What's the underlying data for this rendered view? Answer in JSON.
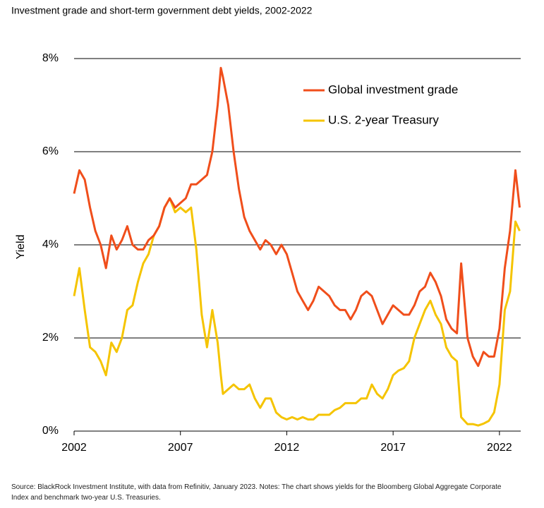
{
  "chart_data": {
    "type": "line",
    "title": "Investment grade and short-term government debt yields, 2002-2022",
    "y_label": "Yield",
    "note": "Source: BlackRock Investment Institute, with data from Refinitiv, January 2023. Notes: The chart shows yields for the Bloomberg Global Aggregate Corporate Index and benchmark two-year U.S. Treasuries.",
    "x": [
      2002.0,
      2002.25,
      2002.5,
      2002.75,
      2003.0,
      2003.25,
      2003.5,
      2003.75,
      2004.0,
      2004.25,
      2004.5,
      2004.75,
      2005.0,
      2005.25,
      2005.5,
      2005.75,
      2006.0,
      2006.25,
      2006.5,
      2006.75,
      2007.0,
      2007.25,
      2007.5,
      2007.75,
      2008.0,
      2008.25,
      2008.5,
      2008.75,
      2008.9,
      2009.0,
      2009.25,
      2009.5,
      2009.75,
      2010.0,
      2010.25,
      2010.5,
      2010.75,
      2011.0,
      2011.25,
      2011.5,
      2011.75,
      2012.0,
      2012.25,
      2012.5,
      2012.75,
      2013.0,
      2013.25,
      2013.5,
      2013.75,
      2014.0,
      2014.25,
      2014.5,
      2014.75,
      2015.0,
      2015.25,
      2015.5,
      2015.75,
      2016.0,
      2016.25,
      2016.5,
      2016.75,
      2017.0,
      2017.25,
      2017.5,
      2017.75,
      2018.0,
      2018.25,
      2018.5,
      2018.75,
      2019.0,
      2019.25,
      2019.5,
      2019.75,
      2020.0,
      2020.2,
      2020.5,
      2020.75,
      2021.0,
      2021.25,
      2021.5,
      2021.75,
      2022.0,
      2022.25,
      2022.5,
      2022.75,
      2022.95
    ],
    "series": [
      {
        "name": "Global investment grade",
        "color": "#f04e1b",
        "values": [
          5.1,
          5.6,
          5.4,
          4.8,
          4.3,
          4.0,
          3.5,
          4.2,
          3.9,
          4.1,
          4.4,
          4.0,
          3.9,
          3.9,
          4.1,
          4.2,
          4.4,
          4.8,
          5.0,
          4.8,
          4.9,
          5.0,
          5.3,
          5.3,
          5.4,
          5.5,
          6.0,
          7.0,
          7.8,
          7.6,
          7.0,
          6.0,
          5.2,
          4.6,
          4.3,
          4.1,
          3.9,
          4.1,
          4.0,
          3.8,
          4.0,
          3.8,
          3.4,
          3.0,
          2.8,
          2.6,
          2.8,
          3.1,
          3.0,
          2.9,
          2.7,
          2.6,
          2.6,
          2.4,
          2.6,
          2.9,
          3.0,
          2.9,
          2.6,
          2.3,
          2.5,
          2.7,
          2.6,
          2.5,
          2.5,
          2.7,
          3.0,
          3.1,
          3.4,
          3.2,
          2.9,
          2.4,
          2.2,
          2.1,
          3.6,
          2.0,
          1.6,
          1.4,
          1.7,
          1.6,
          1.6,
          2.2,
          3.5,
          4.3,
          5.6,
          4.8
        ]
      },
      {
        "name": "U.S. 2-year Treasury",
        "color": "#f5c400",
        "values": [
          2.9,
          3.5,
          2.6,
          1.8,
          1.7,
          1.5,
          1.2,
          1.9,
          1.7,
          2.0,
          2.6,
          2.7,
          3.2,
          3.6,
          3.8,
          4.2,
          4.4,
          4.8,
          5.0,
          4.7,
          4.8,
          4.7,
          4.8,
          3.9,
          2.5,
          1.8,
          2.6,
          1.9,
          1.2,
          0.8,
          0.9,
          1.0,
          0.9,
          0.9,
          1.0,
          0.7,
          0.5,
          0.7,
          0.7,
          0.4,
          0.3,
          0.25,
          0.3,
          0.25,
          0.3,
          0.25,
          0.25,
          0.35,
          0.35,
          0.35,
          0.45,
          0.5,
          0.6,
          0.6,
          0.6,
          0.7,
          0.7,
          1.0,
          0.8,
          0.7,
          0.9,
          1.2,
          1.3,
          1.35,
          1.5,
          2.0,
          2.3,
          2.6,
          2.8,
          2.5,
          2.3,
          1.8,
          1.6,
          1.5,
          0.3,
          0.15,
          0.15,
          0.12,
          0.16,
          0.22,
          0.4,
          1.0,
          2.6,
          3.0,
          4.5,
          4.3
        ]
      }
    ],
    "xlim": [
      2002,
      2023
    ],
    "xticks": [
      2002,
      2007,
      2012,
      2017,
      2022
    ],
    "ylim": [
      0,
      8
    ],
    "yticks": [
      {
        "value": 0,
        "label": "0%"
      },
      {
        "value": 2,
        "label": "2%"
      },
      {
        "value": 4,
        "label": "4%"
      },
      {
        "value": 6,
        "label": "6%"
      },
      {
        "value": 8,
        "label": "8%"
      }
    ],
    "grid": true,
    "legend": "top-right"
  }
}
